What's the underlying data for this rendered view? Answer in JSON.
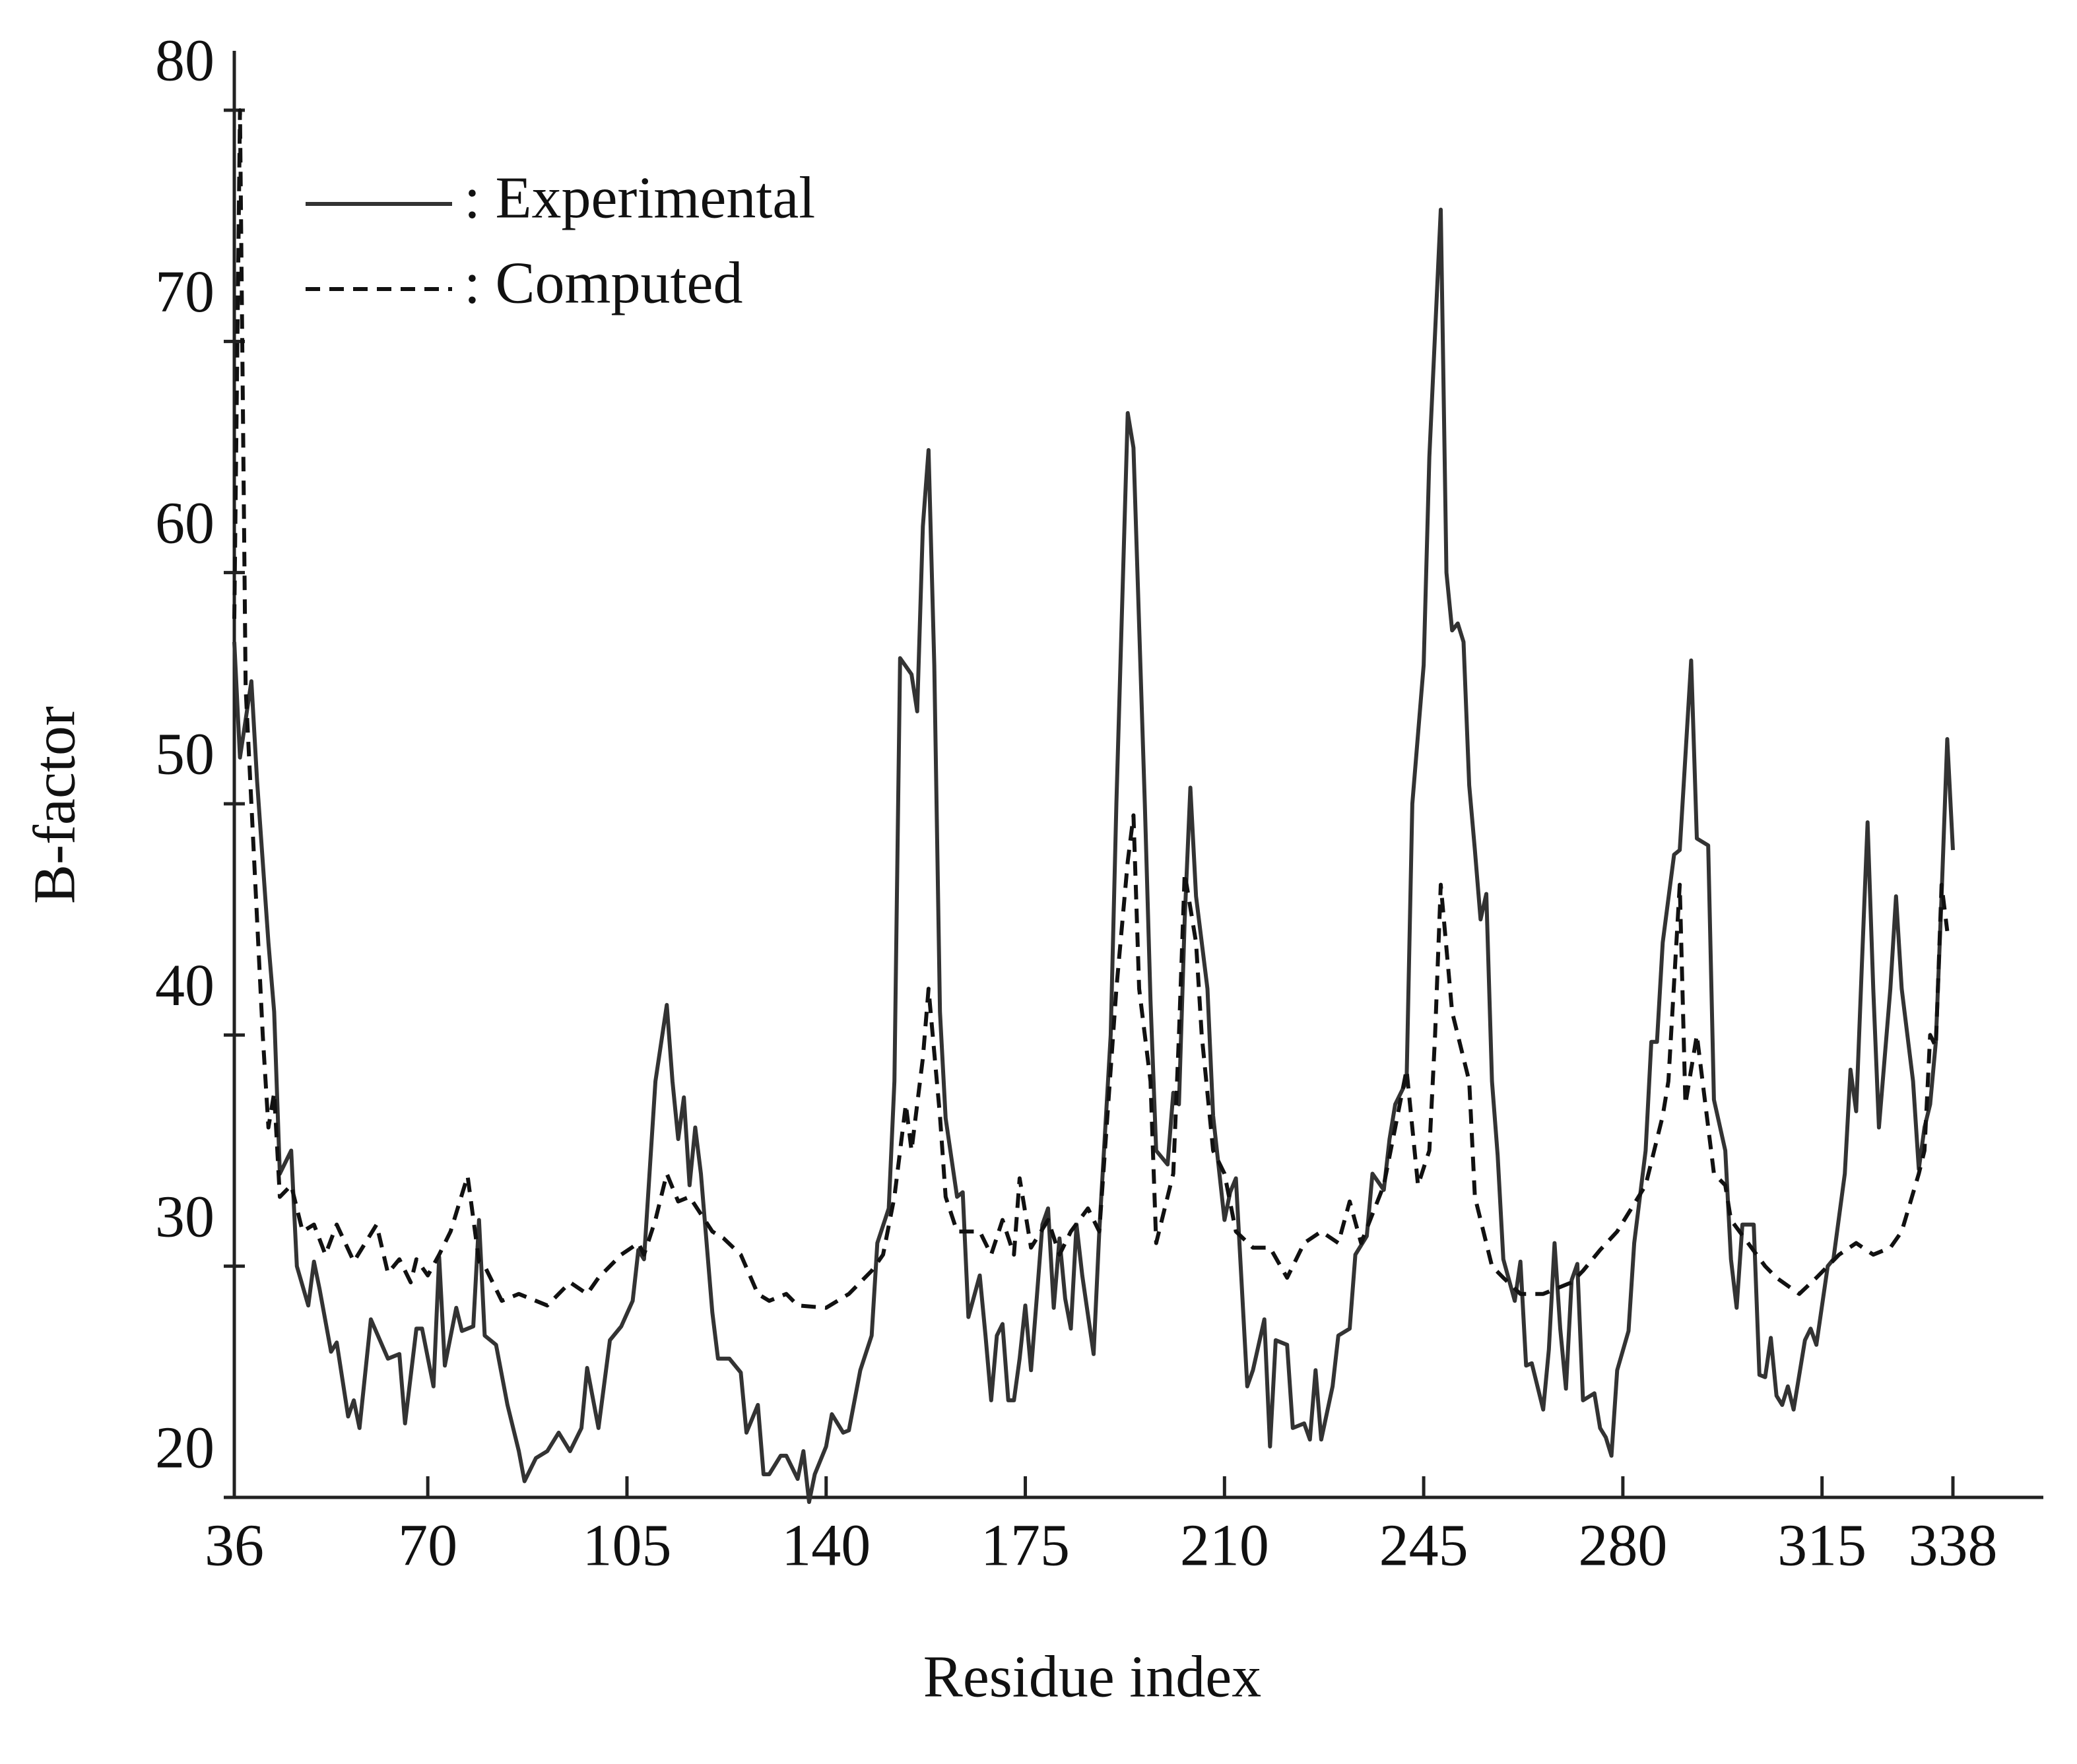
{
  "chart_data": {
    "type": "line",
    "xlabel": "Residue index",
    "ylabel": "B-factor",
    "xlim": [
      36,
      338
    ],
    "ylim": [
      20,
      80
    ],
    "xticks": [
      36,
      70,
      105,
      140,
      175,
      210,
      245,
      280,
      315,
      338
    ],
    "yticks": [
      20,
      30,
      40,
      50,
      60,
      70,
      80
    ],
    "legend": "upper left",
    "series": [
      {
        "name": ": Experimental",
        "color": "#333333",
        "linestyle": "solid",
        "x": [
          36,
          37,
          39,
          40,
          42,
          43,
          44,
          46,
          47,
          49,
          50,
          51,
          53,
          54,
          56,
          57,
          58,
          60,
          63,
          65,
          66,
          68,
          69,
          71,
          72,
          73,
          75,
          76,
          78,
          79,
          80,
          82,
          84,
          86,
          87,
          89,
          91,
          93,
          95,
          97,
          98,
          100,
          102,
          104,
          106,
          107,
          108,
          110,
          112,
          113,
          114,
          115,
          116,
          117,
          118,
          120,
          121,
          123,
          125,
          126,
          128,
          129,
          130,
          132,
          133,
          135,
          136,
          137,
          138,
          140,
          141,
          143,
          144,
          146,
          148,
          149,
          151,
          152,
          153,
          155,
          156,
          157,
          158,
          159,
          160,
          161,
          163,
          164,
          165,
          167,
          168,
          169,
          170,
          171,
          172,
          173,
          174,
          175,
          176,
          177,
          178,
          179,
          180,
          181,
          182,
          183,
          184,
          185,
          187,
          188,
          190,
          191,
          193,
          194,
          196,
          197,
          198,
          200,
          201,
          202,
          203,
          204,
          205,
          207,
          208,
          210,
          211,
          212,
          214,
          215,
          217,
          218,
          219,
          221,
          222,
          224,
          225,
          226,
          227,
          229,
          230,
          232,
          233,
          235,
          236,
          238,
          239,
          240,
          242,
          243,
          245,
          246,
          248,
          249,
          250,
          251,
          252,
          253,
          254,
          255,
          256,
          257,
          258,
          259,
          261,
          262,
          263,
          264,
          266,
          267,
          268,
          269,
          270,
          271,
          272,
          273,
          275,
          276,
          277,
          278,
          279,
          281,
          282,
          284,
          285,
          286,
          287,
          289,
          290,
          292,
          293,
          295,
          296,
          298,
          299,
          300,
          301,
          303,
          304,
          305,
          306,
          307,
          308,
          309,
          310,
          312,
          313,
          314,
          316,
          317,
          319,
          320,
          321,
          322,
          323,
          324,
          325,
          327,
          328,
          329,
          331,
          332,
          333,
          334,
          335,
          336,
          337,
          338
        ],
        "values": [
          57,
          52,
          55.3,
          51,
          44,
          41,
          34,
          35,
          30,
          28.3,
          30.2,
          29,
          26.3,
          26.7,
          23.5,
          24.2,
          23,
          27.7,
          26,
          26.2,
          23.2,
          27.3,
          27.3,
          24.8,
          30.4,
          25.7,
          28.2,
          27.2,
          27.4,
          32,
          27,
          26.6,
          24,
          22,
          20.7,
          21.7,
          22,
          22.8,
          22,
          23,
          25.6,
          23,
          26.8,
          27.4,
          28.5,
          30.7,
          30.3,
          38,
          41.3,
          38,
          35.5,
          37.3,
          33.5,
          36,
          34,
          28,
          26,
          26,
          25.4,
          22.8,
          24,
          21,
          21,
          21.8,
          21.8,
          20.8,
          22,
          19.8,
          21,
          22.2,
          23.6,
          22.8,
          22.9,
          25.5,
          27,
          31,
          32.5,
          38,
          56.3,
          55.6,
          54,
          62,
          65.3,
          56,
          41,
          36.4,
          33,
          33.2,
          27.8,
          29.6,
          27,
          24.2,
          27,
          27.5,
          24.2,
          24.2,
          26,
          28.3,
          25.5,
          28.6,
          31.8,
          32.5,
          28.2,
          31.2,
          28.6,
          27.3,
          31.8,
          29.6,
          26.2,
          31.5,
          40,
          50,
          66.9,
          65.4,
          50,
          41.5,
          35,
          34.4,
          37.5,
          37,
          45,
          50.7,
          46,
          42,
          36.5,
          32,
          33.2,
          33.8,
          24.8,
          25.5,
          27.7,
          22.2,
          26.8,
          26.6,
          23,
          23.2,
          22.5,
          25.5,
          22.5,
          24.8,
          27,
          27.3,
          30.5,
          31.3,
          34,
          33.3,
          35.5,
          37,
          38,
          50,
          56,
          65,
          75.7,
          60,
          57.5,
          57.8,
          57,
          50.8,
          48,
          45,
          46.1,
          38,
          34.8,
          30.3,
          28.5,
          30.2,
          25.7,
          25.8,
          23.8,
          26.4,
          31,
          27.3,
          24.7,
          29.4,
          30.1,
          24.2,
          24.5,
          23,
          22.6,
          21.8,
          25.5,
          27.2,
          31,
          35,
          39.7,
          39.7,
          44,
          47.8,
          48,
          56.2,
          48.5,
          48.2,
          37.2,
          35,
          30.3,
          28.2,
          31.8,
          31.8,
          25.3,
          25.2,
          26.9,
          24.4,
          24,
          24.8,
          23.8,
          26.8,
          27.3,
          26.6,
          30,
          30.3,
          34,
          38.5,
          36.7,
          43,
          49.2,
          42,
          36,
          42,
          46,
          42,
          38,
          34.2,
          36,
          37,
          39.7,
          46,
          52.8,
          48
        ]
      },
      {
        "name": ": Computed",
        "color": "#111111",
        "linestyle": "dashed",
        "x": [
          36,
          37,
          38,
          39,
          41,
          42,
          43,
          44,
          46,
          48,
          50,
          52,
          54,
          57,
          61,
          63,
          65,
          67,
          68,
          70,
          72,
          74,
          77,
          79,
          80,
          83,
          86,
          91,
          95,
          98,
          100,
          104,
          107,
          108,
          110,
          112,
          114,
          116,
          120,
          122,
          125,
          128,
          130,
          133,
          135,
          140,
          144,
          148,
          150,
          152,
          154,
          155,
          157,
          158,
          160,
          161,
          163,
          167,
          169,
          171,
          173,
          174,
          176,
          179,
          181,
          183,
          186,
          188,
          189,
          191,
          193,
          194,
          195,
          197,
          198,
          201,
          202,
          203,
          205,
          206,
          208,
          210,
          212,
          215,
          218,
          221,
          224,
          227,
          230,
          232,
          234,
          238,
          240,
          242,
          244,
          246,
          247,
          248,
          250,
          251,
          253,
          254,
          257,
          259,
          262,
          266,
          271,
          273,
          276,
          279,
          284,
          287,
          288,
          290,
          291,
          293,
          296,
          298,
          299,
          302,
          305,
          307,
          311,
          314,
          318,
          321,
          324,
          327,
          329,
          332,
          333,
          334,
          335,
          336,
          337
        ],
        "values": [
          58,
          80,
          55,
          50,
          40,
          36,
          37.5,
          33,
          33.5,
          31.5,
          31.8,
          30.5,
          31.8,
          30.2,
          31.8,
          29.7,
          30.3,
          29.3,
          30.3,
          29.6,
          30.5,
          31.5,
          33.9,
          30.2,
          30,
          28.5,
          28.8,
          28.3,
          29.3,
          28.8,
          29.5,
          30.5,
          31,
          30.5,
          32,
          34,
          32.8,
          33,
          31.5,
          31.2,
          30.5,
          28.8,
          28.5,
          28.8,
          28.3,
          28.2,
          28.8,
          29.8,
          30.5,
          33,
          37,
          35,
          39,
          42,
          36.5,
          33,
          31.5,
          31.5,
          30.5,
          32,
          30.5,
          33.8,
          30.8,
          32,
          30.5,
          31.5,
          32.5,
          31.5,
          35,
          42,
          47.5,
          49.5,
          42,
          38,
          31,
          34,
          40,
          47,
          44,
          40,
          35,
          34,
          31.5,
          30.8,
          30.8,
          29.5,
          31,
          31.5,
          31,
          32.8,
          31,
          33.5,
          36,
          38.5,
          33.5,
          35,
          40,
          46.5,
          41,
          40,
          38,
          33,
          30,
          29.5,
          28.8,
          28.8,
          29.3,
          29.8,
          30.7,
          31.5,
          33.5,
          36.5,
          38,
          46.5,
          37,
          40,
          34,
          33.5,
          32,
          31,
          30,
          29.5,
          28.8,
          29.5,
          30.5,
          31,
          30.5,
          30.8,
          31.5,
          34,
          35,
          40,
          39.5,
          46.5,
          44.5
        ]
      }
    ]
  }
}
